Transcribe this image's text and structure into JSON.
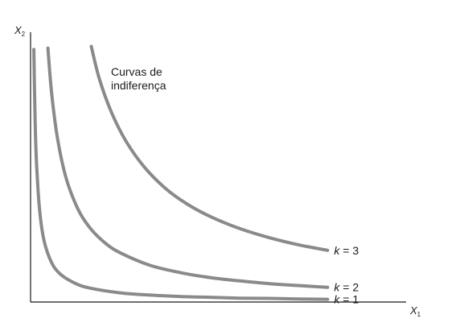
{
  "chart_data": {
    "type": "line",
    "title": "",
    "xlabel": "X",
    "xlabel_sub": "1",
    "ylabel": "X",
    "ylabel_sub": "2",
    "annotation": [
      "Curvas de",
      "indiferença"
    ],
    "grid": false,
    "legend": "none",
    "colors": {
      "curve": "#8a8a8a",
      "axis": "#1a1a1a",
      "text": "#1a1a1a"
    },
    "series": [
      {
        "name": "k = 1",
        "label_k": "k",
        "label_rest": " = 1",
        "x": [
          0.011,
          0.015,
          0.02,
          0.03,
          0.045,
          0.07,
          0.1,
          0.15,
          0.2,
          0.3,
          0.4,
          0.5,
          0.6,
          0.7,
          0.8,
          0.9,
          0.993
        ],
        "y": [
          0.909,
          0.665,
          0.5,
          0.333,
          0.222,
          0.143,
          0.1,
          0.067,
          0.05,
          0.033,
          0.025,
          0.02,
          0.017,
          0.014,
          0.013,
          0.011,
          0.01
        ]
      },
      {
        "name": "k = 2",
        "label_k": "k",
        "label_rest": " = 2",
        "x": [
          0.058,
          0.07,
          0.09,
          0.12,
          0.16,
          0.2,
          0.25,
          0.3,
          0.4,
          0.5,
          0.6,
          0.7,
          0.8,
          0.9,
          0.993
        ],
        "y": [
          0.914,
          0.757,
          0.589,
          0.442,
          0.331,
          0.265,
          0.212,
          0.177,
          0.132,
          0.106,
          0.088,
          0.076,
          0.066,
          0.059,
          0.053
        ]
      },
      {
        "name": "k = 3",
        "label_k": "k",
        "label_rest": " = 3",
        "x": [
          0.203,
          0.23,
          0.27,
          0.32,
          0.38,
          0.45,
          0.52,
          0.6,
          0.7,
          0.8,
          0.9,
          0.993
        ],
        "y": [
          0.92,
          0.803,
          0.684,
          0.577,
          0.486,
          0.41,
          0.355,
          0.308,
          0.264,
          0.231,
          0.205,
          0.186
        ]
      }
    ]
  }
}
